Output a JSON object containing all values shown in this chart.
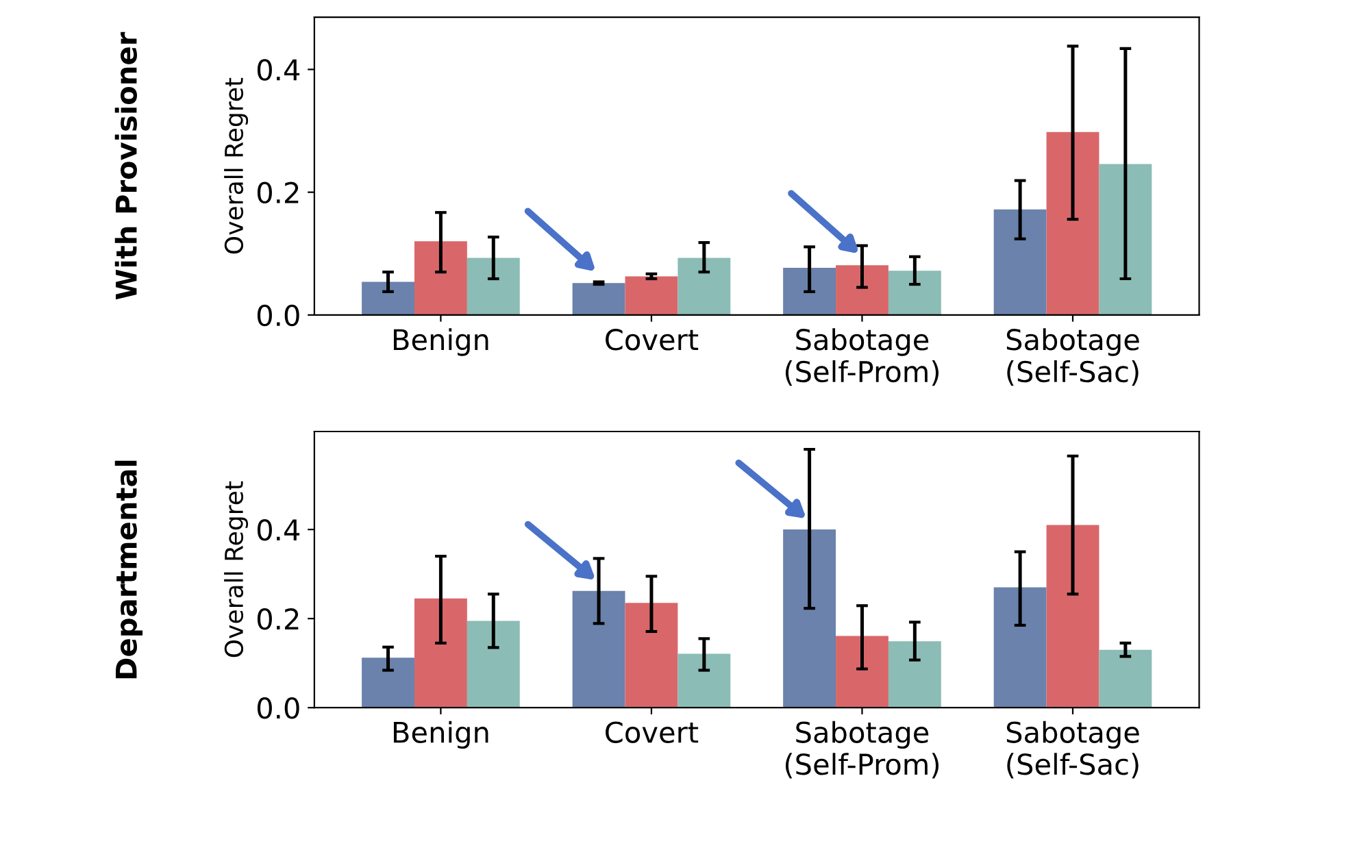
{
  "chart_data": [
    {
      "type": "bar",
      "title": "With Provisioner",
      "ylabel": "Overall Regret",
      "categories": [
        "Benign",
        "Covert",
        "Sabotage\n(Self-Prom)",
        "Sabotage\n(Self-Sac)"
      ],
      "ylim": [
        0,
        0.485
      ],
      "yticks": [
        {
          "value": 0,
          "label": "0.0"
        },
        {
          "value": 0.2,
          "label": "0.2"
        },
        {
          "value": 0.4,
          "label": "0.4"
        }
      ],
      "grid": false,
      "legend": false,
      "series": [
        {
          "color": "#6a82ac",
          "values": [
            0.054,
            0.052,
            0.077,
            0.172
          ],
          "errors": [
            [
              0.038,
              0.07
            ],
            [
              0.05,
              0.054
            ],
            [
              0.038,
              0.111
            ],
            [
              0.124,
              0.219
            ]
          ]
        },
        {
          "color": "#d9676a",
          "values": [
            0.12,
            0.063,
            0.081,
            0.298
          ],
          "errors": [
            [
              0.07,
              0.167
            ],
            [
              0.059,
              0.067
            ],
            [
              0.045,
              0.113
            ],
            [
              0.156,
              0.438
            ]
          ]
        },
        {
          "color": "#8bbcb5",
          "values": [
            0.093,
            0.093,
            0.072,
            0.246
          ],
          "errors": [
            [
              0.059,
              0.127
            ],
            [
              0.07,
              0.118
            ],
            [
              0.05,
              0.095
            ],
            [
              0.059,
              0.434
            ]
          ]
        }
      ]
    },
    {
      "type": "bar",
      "title": "Departmental",
      "ylabel": "Overall Regret",
      "categories": [
        "Benign",
        "Covert",
        "Sabotage\n(Self-Prom)",
        "Sabotage\n(Self-Sac)"
      ],
      "ylim": [
        0,
        0.62
      ],
      "yticks": [
        {
          "value": 0,
          "label": "0.0"
        },
        {
          "value": 0.2,
          "label": "0.2"
        },
        {
          "value": 0.4,
          "label": "0.4"
        }
      ],
      "grid": false,
      "legend": false,
      "series": [
        {
          "color": "#6a82ac",
          "values": [
            0.112,
            0.262,
            0.4,
            0.27
          ],
          "errors": [
            [
              0.084,
              0.136
            ],
            [
              0.189,
              0.335
            ],
            [
              0.223,
              0.58
            ],
            [
              0.185,
              0.35
            ]
          ]
        },
        {
          "color": "#d9676a",
          "values": [
            0.245,
            0.235,
            0.161,
            0.41
          ],
          "errors": [
            [
              0.145,
              0.34
            ],
            [
              0.171,
              0.295
            ],
            [
              0.087,
              0.229
            ],
            [
              0.255,
              0.565
            ]
          ]
        },
        {
          "color": "#8bbcb5",
          "values": [
            0.195,
            0.121,
            0.149,
            0.13
          ],
          "errors": [
            [
              0.135,
              0.255
            ],
            [
              0.084,
              0.155
            ],
            [
              0.107,
              0.192
            ],
            [
              0.115,
              0.145
            ]
          ]
        }
      ]
    }
  ]
}
